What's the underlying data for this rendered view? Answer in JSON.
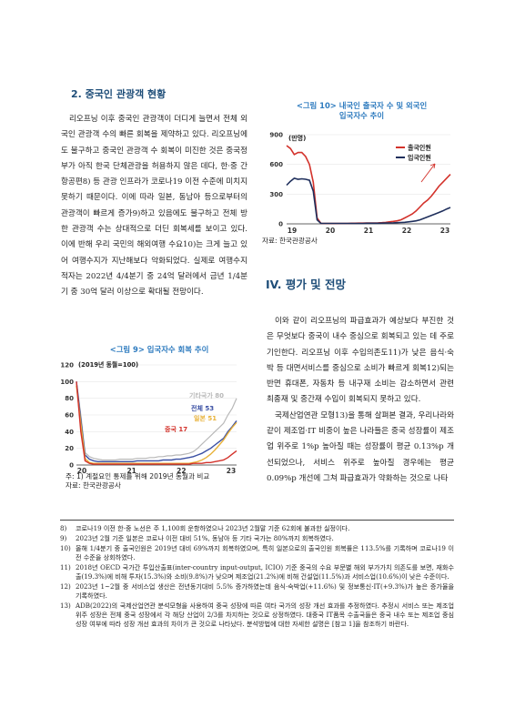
{
  "left": {
    "heading": "2. 중국인 관광객 현황",
    "paragraph": "리오프닝 이후 중국인 관광객이 더디게 늘면서 전체 외국인 관광객 수의 빠른 회복을 제약하고 있다. 리오프닝에도 불구하고 중국인 관광객 수 회복이 미진한 것은 중국정부가 아직 한국 단체관광을 허용하지 않은 데다, 한·중 간 항공편8) 등 관광 인프라가 코로나19 이전 수준에 미치지 못하기 때문이다. 이에 따라 일본, 동남아 등으로부터의 관광객이 빠르게 증가9)하고 있음에도 불구하고 전체 방한 관광객 수는 상대적으로 더딘 회복세를 보이고 있다. 이에 반해 우리 국민의 해외여행 수요10)는 크게 늘고 있어 여행수지가 지난해보다 악화되었다. 실제로 여행수지 적자는 2022년 4/4분기 중 24억 달러에서 금년 1/4분기 중 30억 달러 이상으로 확대될 전망이다."
  },
  "figure9": {
    "title": "<그림 9> 입국자수 회복 추이",
    "note": "주: 1) 계절요인 통제를 위해 2019년 동월과 비교",
    "source": "자료: 한국관광공사"
  },
  "figure10": {
    "title_line1": "<그림 10> 내국인 출국자 수 및 외국인",
    "title_line2": "입국자수 추이",
    "source": "자료: 한국관광공사"
  },
  "right": {
    "heading": "IV. 평가 및 전망",
    "paragraph1": "이와 같이 리오프닝의 파급효과가 예상보다 부진한 것은 무엇보다 중국이 내수 중심으로 회복되고 있는 데 주로 기인한다. 리오프닝 이후 수입의존도11)가 낮은 음식·숙박 등 대면서비스를 중심으로 소비가 빠르게 회복12)되는 반면 휴대폰, 자동차 등 내구재 소비는 감소하면서 관련 최종재 및 중간재 수입이 회복되지 못하고 있다.",
    "paragraph2": "국제산업연관 모형13)을 통해 살펴본 결과, 우리나라와 같이 제조업·IT 비중이 높은 나라들은 중국 성장률이 제조업 위주로 1%p 높아질 때는 성장률이 평균 0.13%p 개선되었으나, 서비스 위주로 높아질 경우에는 평균 0.09%p 개선에 그쳐 파급효과가 약화하는 것으로 나타"
  },
  "footnotes": [
    {
      "num": "8)",
      "text": "코로나19 이전 한·중 노선은 주 1,100회 운항하였으나 2023년 2월말 기준 62회에 불과한 실정이다."
    },
    {
      "num": "9)",
      "text": "2023년 2월 기준 일본은 코로나 이전 대비 51%, 동남아 등 기타 국가는 80%까지 회복하였다."
    },
    {
      "num": "10)",
      "text": "올해 1/4분기 중 출국인원은 2019년 대비 69%까지 회복하였으며, 특히 일본으로의 출국인원 회복률은 113.5%를 기록하며 코로나19 이전 수준을 상회하였다."
    },
    {
      "num": "11)",
      "text": "2018년 OECD 국가간 투입산출표(inter-country input-output, ICIO) 기준 중국의 수요 부문별 해외 부가가치 의존도를 보면, 재화수출(19.3%)에 비해 투자(15.3%)와 소비(9.8%)가 낮으며 제조업(21.2%)에 비해 건설업(11.5%)과 서비스업(10.6%)이 낮은 수준이다."
    },
    {
      "num": "12)",
      "text": "2023년 1~2월 중 서비스업 생산은 전년동기대비 5.5% 증가하였는데 음식·숙박업(+11.6%) 및 정보통신·IT(+9.3%)가 높은 증가율을 기록하였다."
    },
    {
      "num": "13)",
      "text": "ADB(2022)의 국제산업연관 분석모형을 사용하여 중국 성장에 따른 여타 국가의 성장 개선 효과를 추정하였다. 추정시 서비스 또는 제조업 위주 성장은 전체 중국 성장에서 각 해당 산업이 2/3를 차지하는 것으로 상정하였다. 대중국 IT품목 수출국들은 중국 내수 또는 제조업 중심 성장 여부에 따라 성장 개선 효과의 차이가 큰 것으로 나타났다. 분석방법에 대한 자세한 설명은 [참고 1]을 참조하기 바란다."
    }
  ],
  "chart_data": [
    {
      "type": "line",
      "title": "<그림 9> 입국자수 회복 추이",
      "subtitle": "(2019년 동월=100)",
      "x_ticks": [
        "20",
        "21",
        "22",
        "23"
      ],
      "y_ticks": [
        0,
        20,
        40,
        60,
        80,
        100,
        120
      ],
      "ylim": [
        0,
        120
      ],
      "grid": true,
      "colors": {
        "기타국가": "#b8b8b8",
        "전체": "#3a4fa3",
        "일본": "#e8b23a",
        "중국": "#d3322b"
      },
      "series": [
        {
          "name": "기타국가",
          "label": "기타국가 80",
          "values": [
            100,
            60,
            15,
            10,
            8,
            7,
            6,
            6,
            6,
            6,
            7,
            7,
            7,
            7,
            8,
            8,
            8,
            9,
            9,
            10,
            10,
            11,
            11,
            12,
            12,
            13,
            14,
            16,
            20,
            25,
            30,
            35,
            40,
            45,
            50,
            60,
            68,
            80
          ]
        },
        {
          "name": "전체",
          "label": "전체 53",
          "values": [
            100,
            55,
            12,
            7,
            5,
            4,
            4,
            4,
            4,
            4,
            4,
            4,
            4,
            4,
            5,
            5,
            5,
            5,
            5,
            5,
            6,
            6,
            6,
            7,
            7,
            8,
            9,
            10,
            12,
            14,
            17,
            20,
            24,
            28,
            32,
            40,
            46,
            53
          ]
        },
        {
          "name": "일본",
          "label": "일본 51",
          "values": [
            95,
            50,
            8,
            3,
            2,
            2,
            2,
            2,
            2,
            2,
            2,
            2,
            2,
            2,
            2,
            2,
            2,
            2,
            2,
            2,
            2,
            2,
            2,
            2,
            2,
            2,
            2,
            3,
            4,
            6,
            9,
            13,
            18,
            24,
            30,
            38,
            45,
            51
          ]
        },
        {
          "name": "중국",
          "label": "중국 17",
          "values": [
            100,
            40,
            5,
            2,
            1,
            1,
            1,
            1,
            1,
            1,
            1,
            1,
            1,
            1,
            1,
            1,
            1,
            1,
            1,
            1,
            1,
            1,
            1,
            1,
            1,
            1,
            1,
            2,
            2,
            2,
            3,
            3,
            4,
            5,
            6,
            9,
            13,
            17
          ]
        }
      ]
    },
    {
      "type": "line",
      "title": "<그림 10> 내국인 출국자 수 및 외국인 입국자수 추이",
      "unit": "(만명)",
      "x_ticks": [
        "19",
        "20",
        "21",
        "22",
        "23"
      ],
      "y_ticks": [
        0,
        300,
        600,
        900
      ],
      "ylim": [
        0,
        900
      ],
      "grid": true,
      "legend": "top-right",
      "colors": {
        "출국인원": "#d3322b",
        "입국인원": "#1f2f5c"
      },
      "series": [
        {
          "name": "출국인원",
          "values": [
            790,
            760,
            700,
            720,
            720,
            680,
            600,
            420,
            60,
            5,
            4,
            4,
            4,
            4,
            5,
            5,
            5,
            6,
            6,
            7,
            7,
            8,
            8,
            9,
            10,
            12,
            15,
            20,
            25,
            30,
            40,
            60,
            80,
            100,
            130,
            170,
            210,
            240,
            280,
            330,
            380,
            420,
            460,
            500
          ]
        },
        {
          "name": "입국인원",
          "values": [
            390,
            430,
            460,
            450,
            455,
            450,
            440,
            330,
            40,
            5,
            5,
            5,
            5,
            5,
            5,
            5,
            5,
            5,
            5,
            5,
            5,
            6,
            6,
            6,
            6,
            7,
            8,
            9,
            10,
            12,
            14,
            16,
            20,
            25,
            30,
            40,
            55,
            70,
            85,
            100,
            115,
            130,
            150,
            165
          ]
        }
      ]
    }
  ]
}
